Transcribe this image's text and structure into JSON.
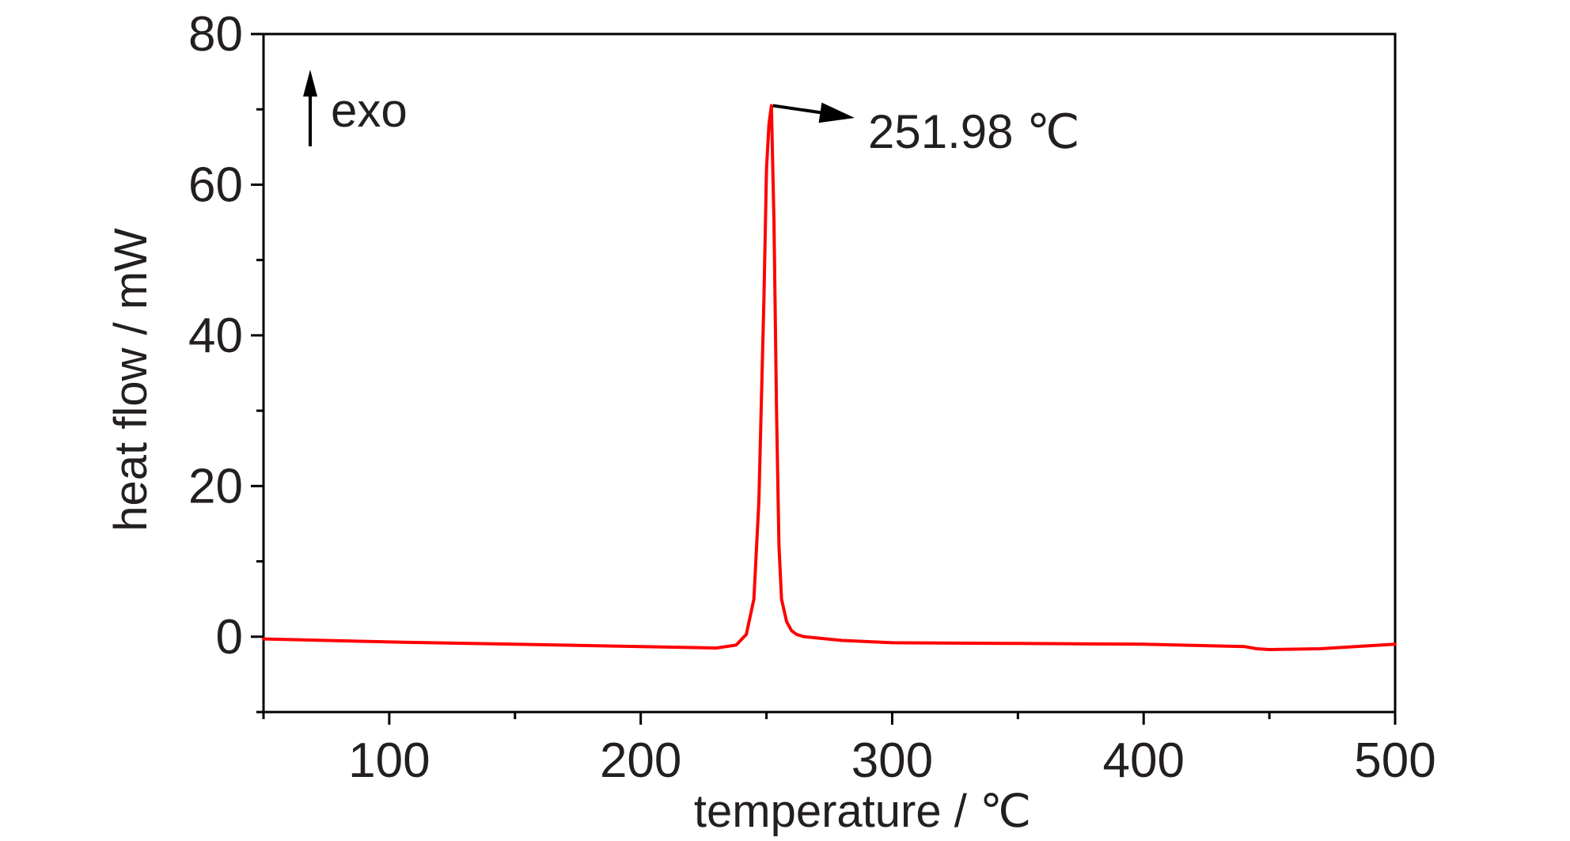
{
  "chart_data": {
    "type": "line",
    "xlabel": "temperature / ℃",
    "ylabel": "heat flow / mW",
    "xlim": [
      50,
      500
    ],
    "ylim": [
      -10,
      80
    ],
    "x_ticks": [
      100,
      200,
      300,
      400,
      500
    ],
    "y_ticks": [
      0,
      20,
      40,
      60,
      80
    ],
    "grid": false,
    "series": [
      {
        "color": "#ff0000",
        "x": [
          50,
          100,
          150,
          200,
          230,
          238,
          242,
          245,
          247,
          249,
          250,
          251,
          251.98,
          253,
          254,
          255,
          256,
          258,
          260,
          262,
          265,
          280,
          300,
          350,
          400,
          440,
          445,
          450,
          470,
          500
        ],
        "y": [
          -0.3,
          -0.7,
          -1.0,
          -1.3,
          -1.5,
          -1.1,
          0.3,
          5,
          18,
          45,
          62,
          68,
          70.5,
          55,
          30,
          12,
          5,
          2,
          0.8,
          0.3,
          0,
          -0.5,
          -0.8,
          -0.9,
          -1.0,
          -1.3,
          -1.6,
          -1.7,
          -1.6,
          -1.0
        ]
      }
    ],
    "annotations": {
      "exo_label": "exo",
      "peak_label": "251.98 ℃",
      "peak_x": 251.98,
      "peak_y": 70.5
    }
  }
}
